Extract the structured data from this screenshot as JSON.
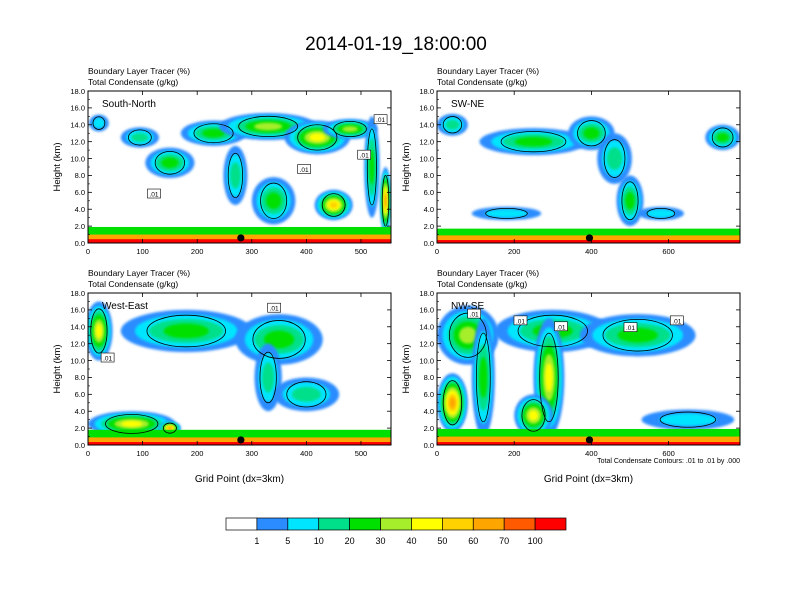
{
  "title": "2014-01-19_18:00:00",
  "colors": {
    "levels": [
      "#ffffff",
      "#2b8cff",
      "#00e5ff",
      "#00e08a",
      "#00e000",
      "#a6ee2b",
      "#ffff00",
      "#ffd200",
      "#ffa500",
      "#ff5a00",
      "#ff0000"
    ],
    "contour": "#000000",
    "marker": "#000000"
  },
  "chart_data": [
    {
      "type": "heatmap",
      "panel_label": "South-North",
      "left_string_1": "Boundary Layer Tracer   (%)",
      "left_string_2": "Total Condensate   (g/kg)",
      "ylabel": "Height (km)",
      "xlabel": "",
      "xlim": [
        0,
        555
      ],
      "ylim": [
        0,
        18
      ],
      "x_ticks": [
        0,
        100,
        200,
        300,
        400,
        500
      ],
      "y_ticks": [
        "0.0",
        "2.0",
        "4.0",
        "6.0",
        "8.0",
        "10.0",
        "12.0",
        "14.0",
        "16.0",
        "18.0"
      ],
      "marker_x": 280,
      "contour_labels": [
        ".01",
        ".01",
        ".01",
        ".01"
      ],
      "contour_label_pos": [
        [
          120,
          5.8
        ],
        [
          395,
          8.7
        ],
        [
          505,
          10.4
        ],
        [
          535,
          14.6
        ]
      ],
      "blobs": [
        {
          "x": 20,
          "y": 14.2,
          "rx": 18,
          "ry": 1.0,
          "v": 5
        },
        {
          "x": 95,
          "y": 12.5,
          "rx": 35,
          "ry": 1.2,
          "v": 10
        },
        {
          "x": 150,
          "y": 9.5,
          "rx": 45,
          "ry": 1.8,
          "v": 20
        },
        {
          "x": 230,
          "y": 13.0,
          "rx": 60,
          "ry": 1.5,
          "v": 20
        },
        {
          "x": 330,
          "y": 13.8,
          "rx": 90,
          "ry": 1.6,
          "v": 30
        },
        {
          "x": 420,
          "y": 12.5,
          "rx": 60,
          "ry": 2.0,
          "v": 40
        },
        {
          "x": 480,
          "y": 13.5,
          "rx": 50,
          "ry": 1.2,
          "v": 30
        },
        {
          "x": 270,
          "y": 8.0,
          "rx": 22,
          "ry": 3.5,
          "v": 10
        },
        {
          "x": 340,
          "y": 5.0,
          "rx": 40,
          "ry": 2.8,
          "v": 20
        },
        {
          "x": 450,
          "y": 4.5,
          "rx": 35,
          "ry": 1.8,
          "v": 50
        },
        {
          "x": 520,
          "y": 9.0,
          "rx": 14,
          "ry": 6.0,
          "v": 20
        },
        {
          "x": 545,
          "y": 5.0,
          "rx": 10,
          "ry": 4.0,
          "v": 60
        }
      ],
      "boundary_layer": [
        {
          "x": 278,
          "y": 1.0,
          "rx": 278,
          "ry": 0.9,
          "v": 20
        },
        {
          "x": 278,
          "y": 0.5,
          "rx": 278,
          "ry": 0.5,
          "v": 60
        },
        {
          "x": 278,
          "y": 0.2,
          "rx": 278,
          "ry": 0.25,
          "v": 100
        }
      ]
    },
    {
      "type": "heatmap",
      "panel_label": "SW-NE",
      "left_string_1": "Boundary Layer Tracer   (%)",
      "left_string_2": "Total Condensate   (g/kg)",
      "ylabel": "Height (km)",
      "xlabel": "",
      "xlim": [
        0,
        785
      ],
      "ylim": [
        0,
        18
      ],
      "x_ticks": [
        0,
        200,
        400,
        600
      ],
      "y_ticks": [
        "0.0",
        "2.0",
        "4.0",
        "6.0",
        "8.0",
        "10.0",
        "12.0",
        "14.0",
        "16.0",
        "18.0"
      ],
      "marker_x": 395,
      "contour_labels": [],
      "contour_label_pos": [],
      "blobs": [
        {
          "x": 40,
          "y": 14.0,
          "rx": 40,
          "ry": 1.3,
          "v": 10
        },
        {
          "x": 250,
          "y": 12.0,
          "rx": 140,
          "ry": 1.6,
          "v": 20
        },
        {
          "x": 400,
          "y": 13.0,
          "rx": 60,
          "ry": 2.0,
          "v": 20
        },
        {
          "x": 460,
          "y": 10.0,
          "rx": 45,
          "ry": 3.0,
          "v": 10
        },
        {
          "x": 500,
          "y": 5.0,
          "rx": 35,
          "ry": 3.0,
          "v": 20
        },
        {
          "x": 180,
          "y": 3.5,
          "rx": 90,
          "ry": 0.8,
          "v": 5
        },
        {
          "x": 580,
          "y": 3.5,
          "rx": 60,
          "ry": 0.8,
          "v": 5
        },
        {
          "x": 740,
          "y": 12.5,
          "rx": 45,
          "ry": 1.5,
          "v": 20
        }
      ],
      "boundary_layer": [
        {
          "x": 392,
          "y": 0.9,
          "rx": 392,
          "ry": 0.8,
          "v": 20
        },
        {
          "x": 392,
          "y": 0.45,
          "rx": 392,
          "ry": 0.45,
          "v": 60
        },
        {
          "x": 392,
          "y": 0.15,
          "rx": 392,
          "ry": 0.2,
          "v": 100
        }
      ]
    },
    {
      "type": "heatmap",
      "panel_label": "West-East",
      "left_string_1": "Boundary Layer Tracer   (%)",
      "left_string_2": "Total Condensate   (g/kg)",
      "ylabel": "Height (km)",
      "xlabel": "Grid Point (dx=3km)",
      "xlim": [
        0,
        555
      ],
      "ylim": [
        0,
        18
      ],
      "x_ticks": [
        0,
        100,
        200,
        300,
        400,
        500
      ],
      "y_ticks": [
        "0.0",
        "2.0",
        "4.0",
        "6.0",
        "8.0",
        "10.0",
        "12.0",
        "14.0",
        "16.0",
        "18.0"
      ],
      "marker_x": 280,
      "contour_labels": [
        ".01",
        ".01"
      ],
      "contour_label_pos": [
        [
          35,
          10.3
        ],
        [
          340,
          16.2
        ]
      ],
      "blobs": [
        {
          "x": 20,
          "y": 13.5,
          "rx": 25,
          "ry": 3.5,
          "v": 40
        },
        {
          "x": 180,
          "y": 13.5,
          "rx": 120,
          "ry": 2.5,
          "v": 20
        },
        {
          "x": 350,
          "y": 12.5,
          "rx": 80,
          "ry": 3.0,
          "v": 20
        },
        {
          "x": 330,
          "y": 8.0,
          "rx": 25,
          "ry": 4.0,
          "v": 10
        },
        {
          "x": 400,
          "y": 6.0,
          "rx": 60,
          "ry": 2.0,
          "v": 10
        },
        {
          "x": 80,
          "y": 2.5,
          "rx": 80,
          "ry": 1.5,
          "v": 40
        },
        {
          "x": 150,
          "y": 2.0,
          "rx": 20,
          "ry": 0.8,
          "v": 60
        }
      ],
      "boundary_layer": [
        {
          "x": 278,
          "y": 1.0,
          "rx": 278,
          "ry": 0.8,
          "v": 20
        },
        {
          "x": 278,
          "y": 0.45,
          "rx": 278,
          "ry": 0.45,
          "v": 60
        },
        {
          "x": 278,
          "y": 0.15,
          "rx": 278,
          "ry": 0.2,
          "v": 100
        }
      ]
    },
    {
      "type": "heatmap",
      "panel_label": "NW-SE",
      "left_string_1": "Boundary Layer Tracer   (%)",
      "left_string_2": "Total Condensate   (g/kg)",
      "ylabel": "Height (km)",
      "xlabel": "Grid Point (dx=3km)",
      "footnote": "Total Condensate Contours: .01 to .01 by .000",
      "xlim": [
        0,
        785
      ],
      "ylim": [
        0,
        18
      ],
      "x_ticks": [
        0,
        200,
        400,
        600
      ],
      "y_ticks": [
        "0.0",
        "2.0",
        "4.0",
        "6.0",
        "8.0",
        "10.0",
        "12.0",
        "14.0",
        "16.0",
        "18.0"
      ],
      "marker_x": 395,
      "contour_labels": [
        ".01",
        ".01",
        ".01",
        ".01",
        ".01"
      ],
      "contour_label_pos": [
        [
          95,
          15.5
        ],
        [
          215,
          14.7
        ],
        [
          320,
          14.0
        ],
        [
          500,
          13.9
        ],
        [
          620,
          14.7
        ]
      ],
      "blobs": [
        {
          "x": 80,
          "y": 13.0,
          "rx": 80,
          "ry": 3.5,
          "v": 30
        },
        {
          "x": 300,
          "y": 13.5,
          "rx": 150,
          "ry": 2.5,
          "v": 20
        },
        {
          "x": 520,
          "y": 13.0,
          "rx": 150,
          "ry": 2.5,
          "v": 20
        },
        {
          "x": 120,
          "y": 8.0,
          "rx": 30,
          "ry": 7.0,
          "v": 20
        },
        {
          "x": 290,
          "y": 8.0,
          "rx": 40,
          "ry": 7.0,
          "v": 40
        },
        {
          "x": 40,
          "y": 5.0,
          "rx": 40,
          "ry": 3.5,
          "v": 60
        },
        {
          "x": 650,
          "y": 3.0,
          "rx": 120,
          "ry": 1.2,
          "v": 5
        },
        {
          "x": 250,
          "y": 3.5,
          "rx": 50,
          "ry": 2.5,
          "v": 40
        }
      ],
      "boundary_layer": [
        {
          "x": 392,
          "y": 1.0,
          "rx": 392,
          "ry": 0.9,
          "v": 20
        },
        {
          "x": 392,
          "y": 0.5,
          "rx": 392,
          "ry": 0.5,
          "v": 60
        },
        {
          "x": 392,
          "y": 0.15,
          "rx": 392,
          "ry": 0.2,
          "v": 100
        }
      ]
    }
  ],
  "colorbar": {
    "labels": [
      "1",
      "5",
      "10",
      "20",
      "30",
      "40",
      "50",
      "60",
      "70",
      "100"
    ]
  }
}
